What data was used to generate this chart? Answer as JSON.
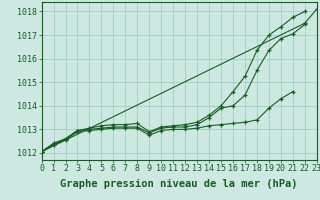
{
  "background_color": "#cce8e0",
  "grid_color": "#99ccbb",
  "line_color": "#1a5c28",
  "xlabel": "Graphe pression niveau de la mer (hPa)",
  "xlabel_fontsize": 7.5,
  "tick_fontsize": 6.0,
  "ylabel_ticks": [
    1012,
    1013,
    1014,
    1015,
    1016,
    1017,
    1018
  ],
  "xlim": [
    0,
    23
  ],
  "ylim": [
    1011.7,
    1018.4
  ],
  "hours": [
    0,
    1,
    2,
    3,
    4,
    5,
    6,
    7,
    8,
    9,
    10,
    11,
    12,
    13,
    14,
    15,
    16,
    17,
    18,
    19,
    20,
    21,
    22,
    23
  ],
  "line1": [
    1012.05,
    1012.35,
    1012.55,
    1012.9,
    1012.95,
    1013.0,
    1013.05,
    1013.05,
    1013.05,
    1012.75,
    1012.95,
    1013.0,
    1013.0,
    1013.05,
    1013.15,
    1013.2,
    1013.25,
    1013.3,
    1013.4,
    1013.9,
    1014.3,
    1014.6,
    null,
    null
  ],
  "line2": [
    1012.05,
    1012.4,
    1012.6,
    1012.95,
    1013.0,
    1013.05,
    1013.1,
    1013.1,
    1013.1,
    1012.85,
    1013.05,
    1013.1,
    1013.1,
    1013.2,
    1013.5,
    1013.9,
    1014.0,
    1014.45,
    1015.5,
    1016.35,
    1016.85,
    1017.05,
    1017.45,
    null
  ],
  "line3": [
    1012.05,
    1012.4,
    1012.6,
    1012.95,
    1013.05,
    1013.15,
    1013.2,
    1013.2,
    1013.25,
    1012.9,
    1013.1,
    1013.15,
    1013.2,
    1013.3,
    1013.6,
    1014.0,
    1014.6,
    1015.25,
    1016.35,
    1017.0,
    1017.35,
    1017.75,
    1018.0,
    null
  ],
  "line4": [
    1012.05,
    null,
    null,
    null,
    null,
    null,
    null,
    null,
    null,
    null,
    null,
    null,
    null,
    null,
    null,
    null,
    null,
    null,
    null,
    null,
    null,
    null,
    1017.5,
    1018.1
  ]
}
